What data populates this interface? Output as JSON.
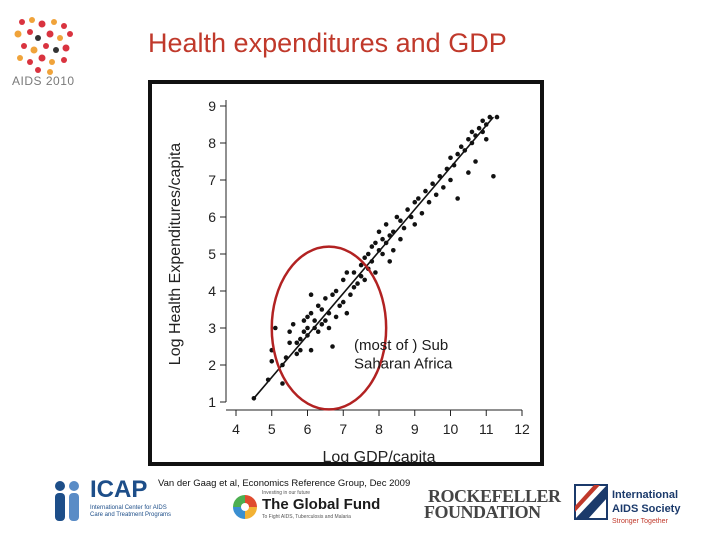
{
  "slide": {
    "title": "Health expenditures and GDP",
    "citation": "Van der Gaag et al, Economics Reference Group, Dec 2009",
    "accent_color": "#c0392b"
  },
  "logos": {
    "aids2010": {
      "text": "AIDS 2010",
      "icon": "aids-2010-logo"
    },
    "icap": {
      "name": "ICAP",
      "subtitle": "International Center for AIDS Care and Treatment Programs",
      "icon": "icap-figures-logo"
    },
    "global_fund": {
      "top": "Investing in our future",
      "name": "The Global Fund",
      "subtitle": "To Fight AIDS, Tuberculosis and Malaria",
      "icon": "global-fund-logo"
    },
    "rockefeller": {
      "line1": "ROCKEFELLER",
      "line2": "FOUNDATION"
    },
    "ias": {
      "line1": "International",
      "line2": "AIDS Society",
      "line3": "Stronger Together",
      "icon": "ias-logo"
    }
  },
  "chart_data": {
    "type": "scatter",
    "xlabel": "Log GDP/capita",
    "ylabel": "Log Health Expenditures/capita",
    "xlim": [
      4,
      12
    ],
    "ylim": [
      1,
      9
    ],
    "xticks": [
      4,
      5,
      6,
      7,
      8,
      9,
      10,
      11,
      12
    ],
    "yticks": [
      1,
      2,
      3,
      4,
      5,
      6,
      7,
      8,
      9
    ],
    "grid": false,
    "point_color": "#111111",
    "trendline": {
      "x": [
        4.5,
        11.2
      ],
      "y": [
        1.1,
        8.7
      ]
    },
    "annotation": {
      "text_line1": "(most of ) Sub",
      "text_line2": "Saharan Africa",
      "shape": "ellipse",
      "color": "#b22222",
      "cx": 6.6,
      "cy": 3.0,
      "rx": 1.6,
      "ry": 2.2
    },
    "points": [
      [
        4.5,
        1.1
      ],
      [
        4.9,
        1.6
      ],
      [
        5.0,
        2.1
      ],
      [
        5.0,
        2.4
      ],
      [
        5.1,
        3.0
      ],
      [
        5.3,
        2.0
      ],
      [
        5.3,
        1.5
      ],
      [
        5.4,
        2.2
      ],
      [
        5.5,
        2.9
      ],
      [
        5.5,
        2.6
      ],
      [
        5.6,
        3.1
      ],
      [
        5.7,
        2.6
      ],
      [
        5.7,
        2.3
      ],
      [
        5.8,
        2.7
      ],
      [
        5.8,
        2.4
      ],
      [
        5.9,
        3.2
      ],
      [
        5.9,
        2.9
      ],
      [
        6.0,
        3.0
      ],
      [
        6.0,
        3.3
      ],
      [
        6.0,
        2.8
      ],
      [
        6.1,
        3.4
      ],
      [
        6.1,
        3.9
      ],
      [
        6.1,
        2.4
      ],
      [
        6.2,
        3.2
      ],
      [
        6.2,
        3.0
      ],
      [
        6.3,
        3.6
      ],
      [
        6.3,
        2.9
      ],
      [
        6.4,
        3.1
      ],
      [
        6.4,
        3.5
      ],
      [
        6.5,
        3.8
      ],
      [
        6.5,
        3.2
      ],
      [
        6.6,
        3.4
      ],
      [
        6.6,
        3.0
      ],
      [
        6.7,
        2.5
      ],
      [
        6.7,
        3.9
      ],
      [
        6.8,
        3.3
      ],
      [
        6.8,
        4.0
      ],
      [
        6.9,
        3.6
      ],
      [
        7.0,
        3.7
      ],
      [
        7.0,
        4.3
      ],
      [
        7.1,
        4.5
      ],
      [
        7.1,
        3.4
      ],
      [
        7.2,
        3.9
      ],
      [
        7.3,
        4.1
      ],
      [
        7.3,
        4.5
      ],
      [
        7.4,
        4.2
      ],
      [
        7.5,
        4.4
      ],
      [
        7.5,
        4.7
      ],
      [
        7.6,
        4.9
      ],
      [
        7.6,
        4.3
      ],
      [
        7.7,
        5.0
      ],
      [
        7.7,
        4.6
      ],
      [
        7.8,
        5.2
      ],
      [
        7.8,
        4.8
      ],
      [
        7.9,
        5.3
      ],
      [
        7.9,
        4.5
      ],
      [
        8.0,
        5.1
      ],
      [
        8.0,
        5.6
      ],
      [
        8.1,
        5.0
      ],
      [
        8.1,
        5.4
      ],
      [
        8.2,
        5.3
      ],
      [
        8.2,
        5.8
      ],
      [
        8.3,
        5.5
      ],
      [
        8.3,
        4.8
      ],
      [
        8.4,
        5.6
      ],
      [
        8.4,
        5.1
      ],
      [
        8.5,
        6.0
      ],
      [
        8.6,
        5.4
      ],
      [
        8.6,
        5.9
      ],
      [
        8.7,
        5.7
      ],
      [
        8.8,
        6.2
      ],
      [
        8.9,
        6.0
      ],
      [
        9.0,
        6.4
      ],
      [
        9.0,
        5.8
      ],
      [
        9.1,
        6.5
      ],
      [
        9.2,
        6.1
      ],
      [
        9.3,
        6.7
      ],
      [
        9.4,
        6.4
      ],
      [
        9.5,
        6.9
      ],
      [
        9.6,
        6.6
      ],
      [
        9.7,
        7.1
      ],
      [
        9.8,
        6.8
      ],
      [
        9.9,
        7.3
      ],
      [
        10.0,
        7.0
      ],
      [
        10.0,
        7.6
      ],
      [
        10.1,
        7.4
      ],
      [
        10.2,
        7.7
      ],
      [
        10.2,
        6.5
      ],
      [
        10.3,
        7.9
      ],
      [
        10.4,
        7.8
      ],
      [
        10.5,
        7.2
      ],
      [
        10.5,
        8.1
      ],
      [
        10.6,
        8.0
      ],
      [
        10.6,
        8.3
      ],
      [
        10.7,
        8.2
      ],
      [
        10.7,
        7.5
      ],
      [
        10.8,
        8.4
      ],
      [
        10.9,
        8.3
      ],
      [
        10.9,
        8.6
      ],
      [
        11.0,
        8.5
      ],
      [
        11.0,
        8.1
      ],
      [
        11.1,
        8.7
      ],
      [
        11.2,
        7.1
      ],
      [
        11.3,
        8.7
      ]
    ]
  }
}
